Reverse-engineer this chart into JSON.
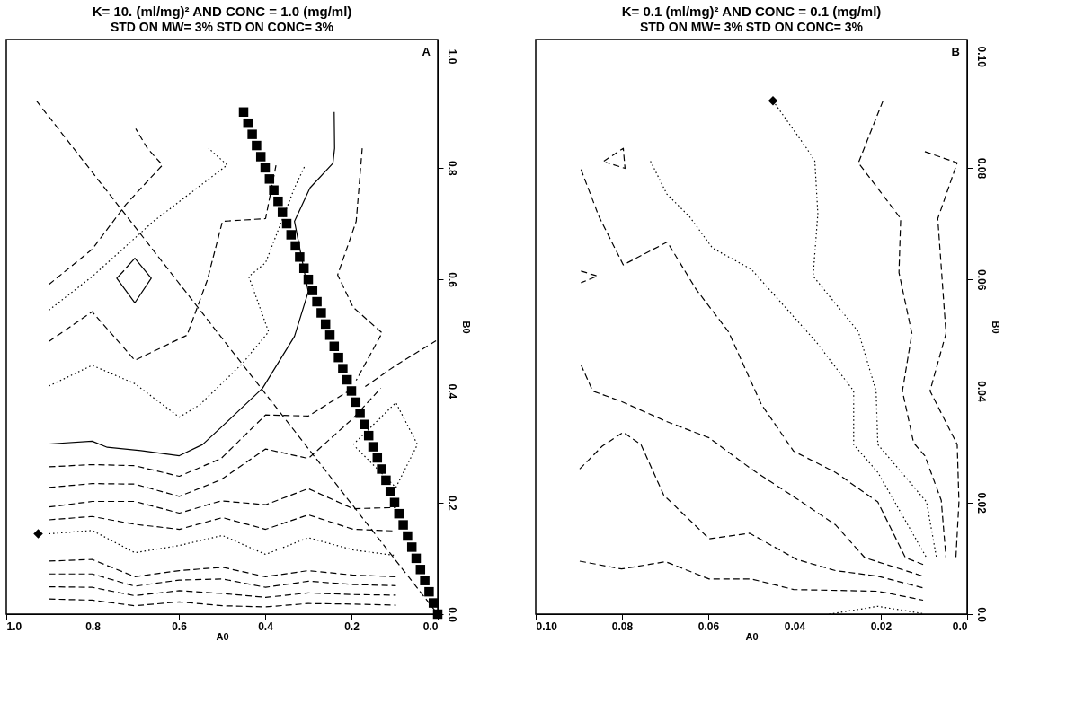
{
  "chart_data": [
    {
      "type": "line",
      "title": "K= 10. (ml/mg)² AND CONC = 1.0 (mg/ml)",
      "subtitle": "STD ON MW= 3%  STD ON CONC= 3%",
      "xlabel": "A0",
      "ylabel": "B0",
      "annotations": [
        "A"
      ],
      "xlim": [
        1.0,
        0.0
      ],
      "ylim": [
        0,
        1.03
      ],
      "xticks": [
        {
          "value": 1.0,
          "label": "1.0"
        },
        0.8,
        0.6,
        0.4,
        0.2,
        {
          "value": 0.0,
          "label": "0.0"
        }
      ],
      "yticks": [
        {
          "value": 0.0,
          "label": "0.0"
        },
        0.2,
        0.4,
        0.6,
        0.8,
        {
          "value": 1.0,
          "label": "1.0"
        }
      ],
      "series": [
        {
          "color": "#000000",
          "line_style": "solid",
          "x": [
            0.901,
            0.801,
            0.766,
            0.688,
            0.599,
            0.545,
            0.488,
            0.406,
            0.332,
            0.3,
            0.332,
            0.296,
            0.243,
            0.239,
            0.24
          ],
          "values": [
            0.305,
            0.31,
            0.299,
            0.293,
            0.284,
            0.304,
            0.345,
            0.405,
            0.498,
            0.578,
            0.704,
            0.764,
            0.808,
            0.835,
            0.9
          ]
        },
        {
          "color": "#000000",
          "line_style": "dashed",
          "x": [
            0.901,
            0.801,
            0.702,
            0.599,
            0.502,
            0.399,
            0.3,
            0.196
          ],
          "values": [
            0.264,
            0.268,
            0.266,
            0.247,
            0.279,
            0.357,
            0.355,
            0.405
          ]
        },
        {
          "color": "#000000",
          "line_style": "dashed",
          "x": [
            0.901,
            0.801,
            0.702,
            0.599,
            0.502,
            0.399,
            0.3,
            0.196,
            0.132
          ],
          "values": [
            0.227,
            0.234,
            0.233,
            0.211,
            0.241,
            0.296,
            0.279,
            0.351,
            0.405
          ]
        },
        {
          "color": "#000000",
          "line_style": "dashed",
          "x": [
            0.901,
            0.801,
            0.702,
            0.599,
            0.502,
            0.399,
            0.3,
            0.196,
            0.097
          ],
          "values": [
            0.192,
            0.202,
            0.202,
            0.181,
            0.203,
            0.196,
            0.225,
            0.189,
            0.191
          ]
        },
        {
          "color": "#000000",
          "line_style": "dashed",
          "x": [
            0.901,
            0.801,
            0.702,
            0.599,
            0.499,
            0.399,
            0.3,
            0.196,
            0.097
          ],
          "values": [
            0.169,
            0.175,
            0.161,
            0.152,
            0.173,
            0.152,
            0.178,
            0.152,
            0.149
          ]
        },
        {
          "color": "#000000",
          "line_style": "dotted",
          "x": [
            0.901,
            0.801,
            0.702,
            0.599,
            0.499,
            0.399,
            0.3,
            0.196,
            0.097
          ],
          "values": [
            0.144,
            0.15,
            0.11,
            0.123,
            0.141,
            0.107,
            0.137,
            0.115,
            0.105
          ]
        },
        {
          "color": "#000000",
          "line_style": "dashed",
          "x": [
            0.901,
            0.801,
            0.702,
            0.599,
            0.499,
            0.399,
            0.3,
            0.196,
            0.097
          ],
          "values": [
            0.095,
            0.098,
            0.067,
            0.078,
            0.084,
            0.067,
            0.078,
            0.07,
            0.067
          ]
        },
        {
          "color": "#000000",
          "line_style": "dashed",
          "x": [
            0.901,
            0.801,
            0.702,
            0.599,
            0.499,
            0.399,
            0.3,
            0.196,
            0.097
          ],
          "values": [
            0.072,
            0.072,
            0.05,
            0.061,
            0.063,
            0.048,
            0.059,
            0.053,
            0.051
          ]
        },
        {
          "color": "#000000",
          "line_style": "dashed",
          "x": [
            0.901,
            0.801,
            0.702,
            0.599,
            0.499,
            0.399,
            0.3,
            0.196,
            0.097
          ],
          "values": [
            0.049,
            0.048,
            0.033,
            0.042,
            0.037,
            0.03,
            0.038,
            0.035,
            0.034
          ]
        },
        {
          "color": "#000000",
          "line_style": "dashed",
          "x": [
            0.901,
            0.801,
            0.702,
            0.599,
            0.499,
            0.399,
            0.3,
            0.196,
            0.097
          ],
          "values": [
            0.027,
            0.025,
            0.015,
            0.022,
            0.015,
            0.013,
            0.019,
            0.018,
            0.016
          ]
        },
        {
          "color": "#000000",
          "line_style": "dashed",
          "x": [
            0.93,
            0.0
          ],
          "values": [
            0.92,
            0.0
          ]
        },
        {
          "color": "#000000",
          "line_style": "dashed",
          "x": [
            0.901,
            0.801,
            0.723,
            0.638,
            0.673,
            0.7
          ],
          "values": [
            0.591,
            0.654,
            0.734,
            0.805,
            0.835,
            0.87
          ]
        },
        {
          "color": "#000000",
          "line_style": "dotted",
          "x": [
            0.901,
            0.801,
            0.659,
            0.488,
            0.531
          ],
          "values": [
            0.545,
            0.605,
            0.704,
            0.805,
            0.835
          ]
        },
        {
          "color": "#000000",
          "line_style": "dashed",
          "x": [
            0.901,
            0.801,
            0.702,
            0.581,
            0.534,
            0.499,
            0.399,
            0.374
          ],
          "values": [
            0.489,
            0.542,
            0.455,
            0.5,
            0.599,
            0.704,
            0.709,
            0.808
          ]
        },
        {
          "color": "#000000",
          "line_style": "dotted",
          "x": [
            0.901,
            0.801,
            0.702,
            0.599,
            0.552,
            0.453,
            0.392,
            0.438,
            0.399,
            0.332,
            0.307
          ],
          "values": [
            0.409,
            0.446,
            0.413,
            0.353,
            0.375,
            0.449,
            0.506,
            0.605,
            0.63,
            0.764,
            0.805
          ]
        },
        {
          "color": "#000000",
          "line_style": "solid",
          "x": [
            0.723,
            0.702,
            0.664,
            0.702,
            0.744,
            0.727
          ],
          "values": [
            0.62,
            0.638,
            0.602,
            0.558,
            0.602,
            0.616
          ]
        },
        {
          "color": "#000000",
          "line_style": "dashed",
          "x": [
            0.175,
            0.189,
            0.232,
            0.196,
            0.129,
            0.189
          ],
          "values": [
            0.835,
            0.704,
            0.608,
            0.55,
            0.504,
            0.419
          ]
        },
        {
          "color": "#000000",
          "line_style": "dashed",
          "x": [
            0.004,
            0.097,
            0.168
          ],
          "values": [
            0.49,
            0.446,
            0.408
          ]
        },
        {
          "color": "#000000",
          "line_style": "dotted",
          "x": [
            0.196,
            0.097,
            0.047,
            0.097,
            0.19
          ],
          "values": [
            0.304,
            0.379,
            0.304,
            0.227,
            0.299
          ]
        },
        {
          "type": "scatter",
          "marker": "square",
          "color": "#000000",
          "x": [
            0.45,
            0.44,
            0.43,
            0.42,
            0.41,
            0.4,
            0.39,
            0.38,
            0.37,
            0.36,
            0.35,
            0.34,
            0.33,
            0.32,
            0.31,
            0.3,
            0.29,
            0.28,
            0.27,
            0.26,
            0.25,
            0.24,
            0.23,
            0.22,
            0.21,
            0.2,
            0.19,
            0.18,
            0.17,
            0.16,
            0.15,
            0.14,
            0.13,
            0.12,
            0.11,
            0.1,
            0.09,
            0.08,
            0.07,
            0.06,
            0.05,
            0.04,
            0.03,
            0.02,
            0.01,
            0.0
          ],
          "values": [
            0.9,
            0.88,
            0.86,
            0.84,
            0.82,
            0.8,
            0.78,
            0.76,
            0.74,
            0.72,
            0.7,
            0.68,
            0.66,
            0.64,
            0.62,
            0.6,
            0.58,
            0.56,
            0.54,
            0.52,
            0.5,
            0.48,
            0.46,
            0.44,
            0.42,
            0.4,
            0.38,
            0.36,
            0.34,
            0.32,
            0.3,
            0.28,
            0.26,
            0.24,
            0.22,
            0.2,
            0.18,
            0.16,
            0.14,
            0.12,
            0.1,
            0.08,
            0.06,
            0.04,
            0.02,
            0.0
          ]
        },
        {
          "type": "scatter",
          "marker": "diamond",
          "color": "#000000",
          "x": [
            0.926
          ],
          "values": [
            0.144
          ]
        }
      ]
    },
    {
      "type": "line",
      "title": "K= 0.1 (ml/mg)² AND CONC = 0.1 (mg/ml)",
      "subtitle": "STD ON MW= 3%  STD ON CONC= 3%",
      "xlabel": "A0",
      "ylabel": "B0",
      "annotations": [
        "B"
      ],
      "xlim": [
        0.1,
        0.0
      ],
      "ylim": [
        0,
        0.103
      ],
      "xticks": [
        {
          "value": 0.1,
          "label": "0.10"
        },
        0.08,
        0.06,
        0.04,
        0.02,
        {
          "value": 0.0,
          "label": "0.0"
        }
      ],
      "yticks": [
        {
          "value": 0.0,
          "label": "0.0"
        },
        0.02,
        0.04,
        0.06,
        0.08,
        {
          "value": 0.1,
          "label": "0.10"
        }
      ],
      "series": [
        {
          "color": "#000000",
          "line_style": "dashed",
          "x": [
            0.0898,
            0.0801,
            0.0699,
            0.0598,
            0.05,
            0.0402,
            0.0207,
            0.0102
          ],
          "values": [
            0.0095,
            0.0081,
            0.0094,
            0.0063,
            0.0063,
            0.0044,
            0.0041,
            0.0025
          ]
        },
        {
          "color": "#000000",
          "line_style": "dashed",
          "x": [
            0.0898,
            0.0846,
            0.0797,
            0.0756,
            0.0703,
            0.0598,
            0.0504,
            0.0395,
            0.0305,
            0.0207,
            0.0102
          ],
          "values": [
            0.026,
            0.0301,
            0.0326,
            0.0304,
            0.0213,
            0.0135,
            0.0145,
            0.0098,
            0.0078,
            0.0068,
            0.0047
          ]
        },
        {
          "color": "#000000",
          "line_style": "dashed",
          "x": [
            0.0895,
            0.0868,
            0.0801,
            0.0699,
            0.0598,
            0.05,
            0.0395,
            0.0305,
            0.0237,
            0.0102
          ],
          "values": [
            0.0447,
            0.04,
            0.0381,
            0.0346,
            0.0316,
            0.026,
            0.0207,
            0.016,
            0.0101,
            0.0068
          ]
        },
        {
          "color": "#000000",
          "line_style": "dashed",
          "x": [
            0.0895,
            0.0853,
            0.0797,
            0.0695,
            0.0628,
            0.0553,
            0.0477,
            0.0402,
            0.0305,
            0.0207,
            0.0143,
            0.0102
          ],
          "values": [
            0.0797,
            0.0712,
            0.0626,
            0.0667,
            0.0582,
            0.0506,
            0.0376,
            0.0292,
            0.0254,
            0.0201,
            0.0101,
            0.0089
          ]
        },
        {
          "color": "#000000",
          "line_style": "dotted",
          "x": [
            0.0734,
            0.0696,
            0.0643,
            0.059,
            0.05,
            0.0425,
            0.035,
            0.0263,
            0.0263,
            0.0207,
            0.0094
          ],
          "values": [
            0.0812,
            0.0753,
            0.0712,
            0.0656,
            0.0618,
            0.0553,
            0.0488,
            0.04,
            0.0304,
            0.0254,
            0.0101
          ]
        },
        {
          "color": "#000000",
          "line_style": "dotted",
          "x": [
            0.045,
            0.0372,
            0.0353,
            0.0346,
            0.0357,
            0.0252,
            0.0211,
            0.0207,
            0.0094,
            0.0071
          ],
          "values": [
            0.092,
            0.0835,
            0.0812,
            0.0718,
            0.0606,
            0.0506,
            0.04,
            0.0304,
            0.0201,
            0.0101
          ]
        },
        {
          "color": "#000000",
          "line_style": "dashed",
          "x": [
            0.0195,
            0.0252,
            0.0154,
            0.0158,
            0.0128,
            0.015,
            0.0124,
            0.0098,
            0.006,
            0.0049
          ],
          "values": [
            0.092,
            0.0809,
            0.0709,
            0.0612,
            0.0503,
            0.04,
            0.0307,
            0.0284,
            0.0204,
            0.0101
          ]
        },
        {
          "color": "#000000",
          "line_style": "dashed",
          "x": [
            0.0098,
            0.0023,
            0.0068,
            0.0049,
            0.0086,
            0.0023,
            0.0019,
            0.0026
          ],
          "values": [
            0.0829,
            0.0809,
            0.0709,
            0.0503,
            0.04,
            0.0304,
            0.0201,
            0.0101
          ]
        },
        {
          "color": "#000000",
          "line_style": "dotted",
          "x": [
            0.032,
            0.0207,
            0.0102
          ],
          "values": [
            0.0,
            0.0014,
            0.0001
          ]
        },
        {
          "color": "#000000",
          "line_style": "dashed",
          "x": [
            0.0842,
            0.0797,
            0.0793,
            0.0838
          ],
          "values": [
            0.0812,
            0.0835,
            0.0799,
            0.081
          ]
        },
        {
          "color": "#000000",
          "line_style": "dashed",
          "x": [
            0.0895,
            0.0857,
            0.0895
          ],
          "values": [
            0.0615,
            0.0606,
            0.0594
          ]
        },
        {
          "type": "scatter",
          "marker": "diamond",
          "color": "#000000",
          "x": [
            0.045
          ],
          "values": [
            0.092
          ]
        }
      ]
    }
  ]
}
